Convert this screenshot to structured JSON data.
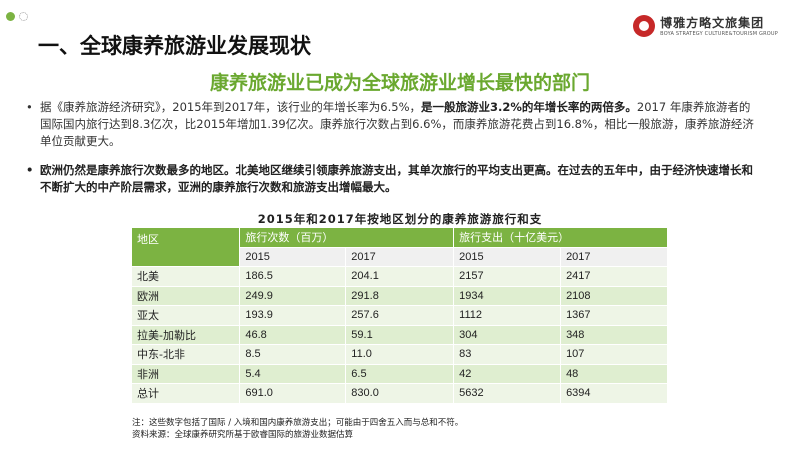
{
  "header": {
    "title": "一、全球康养旅游业发展现状",
    "logo_cn": "博雅方略文旅集团",
    "logo_en": "BOYA STRATEGY CULTURE&TOURISM GROUP"
  },
  "subtitle": "康养旅游业已成为全球旅游业增长最快的部门",
  "paragraph1": {
    "lead": "据《康养旅游经济研究》，2015年到2017年，该行业的年增长率为6.5%，",
    "bold": "是一般旅游业3.2%的年增长率的两倍多。",
    "rest": "2017 年康养旅游者的国际国内旅行达到8.3亿次，比2015年增加1.39亿次。康养旅行次数占到6.6%，而康养旅游花费占到16.8%，相比一般旅游，康养旅游经济单位贡献更大。"
  },
  "paragraph2": "欧洲仍然是康养旅行次数最多的地区。北美地区继续引领康养旅游支出，其单次旅行的平均支出更高。在过去的五年中，由于经济快速增长和不断扩大的中产阶层需求，亚洲的康养旅行次数和旅游支出增幅最大。",
  "table": {
    "title": "2015年和2017年按地区划分的康养旅游旅行和支",
    "col_region": "地区",
    "group1": "旅行次数（百万）",
    "group2": "旅行支出（十亿美元）",
    "years": [
      "2015",
      "2017",
      "2015",
      "2017"
    ],
    "rows": [
      [
        "北美",
        "186.5",
        "204.1",
        "2157",
        "2417"
      ],
      [
        "欧洲",
        "249.9",
        "291.8",
        "1934",
        "2108"
      ],
      [
        "亚太",
        "193.9",
        "257.6",
        "1112",
        "1367"
      ],
      [
        "拉美-加勒比",
        "46.8",
        "59.1",
        "304",
        "348"
      ],
      [
        "中东-北非",
        "8.5",
        "11.0",
        "83",
        "107"
      ],
      [
        "非洲",
        "5.4",
        "6.5",
        "42",
        "48"
      ],
      [
        "总计",
        "691.0",
        "830.0",
        "5632",
        "6394"
      ]
    ]
  },
  "notes": {
    "note": "注：这些数字包括了国际 / 入境和国内康养旅游支出；可能由于四舍五入而与总和不符。",
    "source": "资料来源：全球康养研究所基于欧睿国际的旅游业数据估算"
  },
  "colors": {
    "accent": "#7cb342",
    "subtitle": "#6aa82f",
    "logo": "#c62828"
  }
}
